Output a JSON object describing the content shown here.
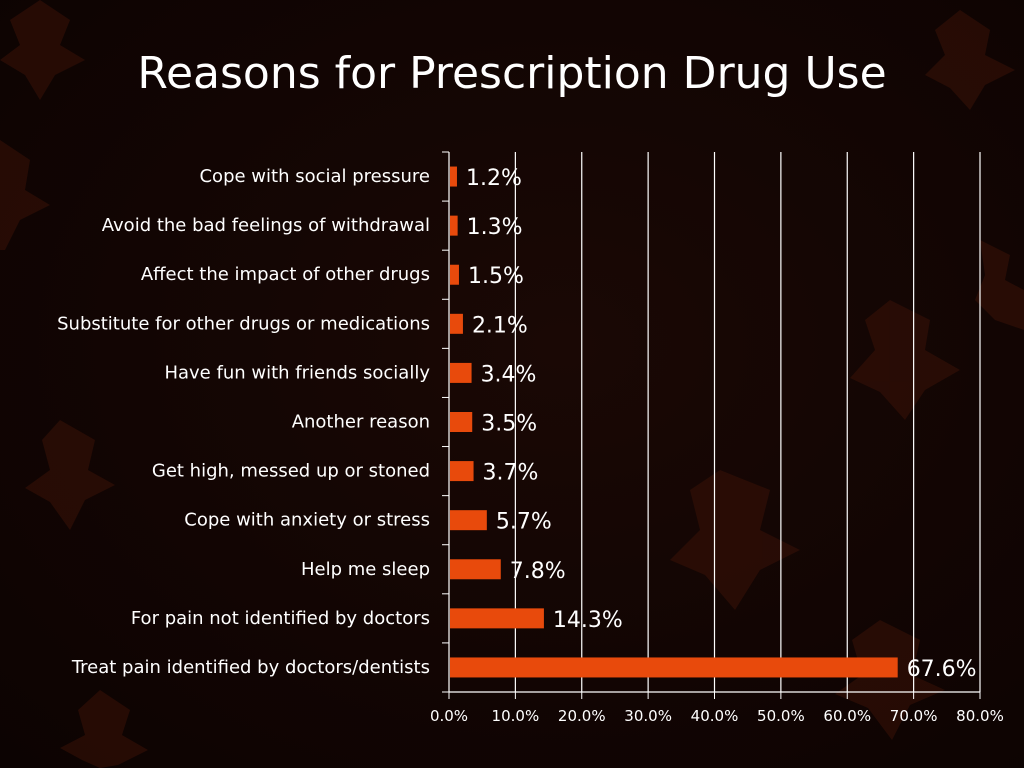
{
  "slide": {
    "title": "Reasons for Prescription Drug Use"
  },
  "colors": {
    "bar": "#e84a0c",
    "text": "#ffffff",
    "grid": "#ffffff",
    "background": "#120503"
  },
  "chart_data": {
    "type": "bar",
    "orientation": "horizontal",
    "categories": [
      "Cope with social pressure",
      "Avoid the bad feelings of withdrawal",
      "Affect the impact of other drugs",
      "Substitute for other drugs or medications",
      "Have fun with friends socially",
      "Another reason",
      "Get high, messed up or stoned",
      "Cope with anxiety or stress",
      "Help me sleep",
      "For pain not identified by doctors",
      "Treat pain identified by doctors/dentists"
    ],
    "values": [
      1.2,
      1.3,
      1.5,
      2.1,
      3.4,
      3.5,
      3.7,
      5.7,
      7.8,
      14.3,
      67.6
    ],
    "data_labels": [
      "1.2%",
      "1.3%",
      "1.5%",
      "2.1%",
      "3.4%",
      "3.5%",
      "3.7%",
      "5.7%",
      "7.8%",
      "14.3%",
      "67.6%"
    ],
    "xlim": [
      0,
      80
    ],
    "x_ticks": [
      0,
      10,
      20,
      30,
      40,
      50,
      60,
      70,
      80
    ],
    "x_tick_labels": [
      "0.0%",
      "10.0%",
      "20.0%",
      "30.0%",
      "40.0%",
      "50.0%",
      "60.0%",
      "70.0%",
      "80.0%"
    ],
    "grid": true,
    "legend": "none"
  }
}
